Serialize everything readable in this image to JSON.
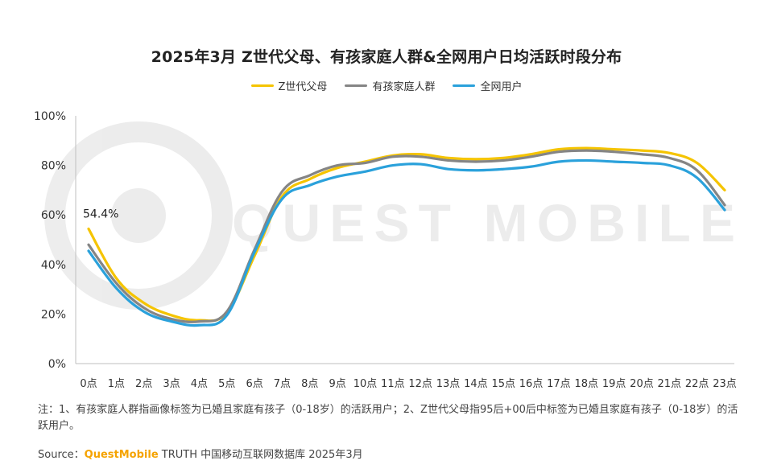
{
  "title": "2025年3月 Z世代父母、有孩家庭人群&全网用户日均活跃时段分布",
  "watermark": "QUEST MOBILE",
  "note": "注：1、有孩家庭人群指画像标签为已婚且家庭有孩子（0-18岁）的活跃用户；2、Z世代父母指95后+00后中标签为已婚且家庭有孩子（0-18岁）的活跃用户。",
  "source": {
    "label": "Source：",
    "brand": "QuestMobile",
    "text": " TRUTH 中国移动互联网数据库 2025年3月"
  },
  "chart_data": {
    "type": "line",
    "categories": [
      "0点",
      "1点",
      "2点",
      "3点",
      "4点",
      "5点",
      "6点",
      "7点",
      "8点",
      "9点",
      "10点",
      "11点",
      "12点",
      "13点",
      "14点",
      "15点",
      "16点",
      "17点",
      "18点",
      "19点",
      "20点",
      "21点",
      "22点",
      "23点"
    ],
    "ylim": [
      0,
      100
    ],
    "yticks": [
      "0%",
      "20%",
      "40%",
      "60%",
      "80%",
      "100%"
    ],
    "series": [
      {
        "name": "Z世代父母",
        "color": "#f5c400",
        "values": [
          54.4,
          34.5,
          24.5,
          19.5,
          17.5,
          20.5,
          43.5,
          67.5,
          74.5,
          79.0,
          81.5,
          84.0,
          84.5,
          83.0,
          82.5,
          83.0,
          84.5,
          86.5,
          87.0,
          86.5,
          86.0,
          85.0,
          81.0,
          70.0
        ]
      },
      {
        "name": "有孩家庭人群",
        "color": "#858585",
        "values": [
          48.0,
          32.5,
          22.5,
          18.0,
          17.0,
          21.0,
          46.0,
          69.5,
          76.0,
          80.0,
          81.0,
          83.5,
          83.5,
          82.0,
          81.5,
          82.0,
          83.5,
          85.5,
          86.0,
          85.5,
          84.5,
          83.0,
          78.0,
          64.0
        ]
      },
      {
        "name": "全网用户",
        "color": "#2aa1db",
        "values": [
          45.5,
          30.5,
          21.0,
          17.0,
          15.5,
          19.5,
          45.0,
          66.5,
          72.0,
          75.5,
          77.5,
          80.0,
          80.5,
          78.5,
          78.0,
          78.5,
          79.5,
          81.5,
          82.0,
          81.5,
          81.0,
          80.0,
          75.0,
          62.0
        ]
      }
    ],
    "annotations": [
      {
        "x": "0点",
        "series": "Z世代父母",
        "text": "54.4%"
      }
    ],
    "legend_position": "top-center",
    "grid": false
  }
}
